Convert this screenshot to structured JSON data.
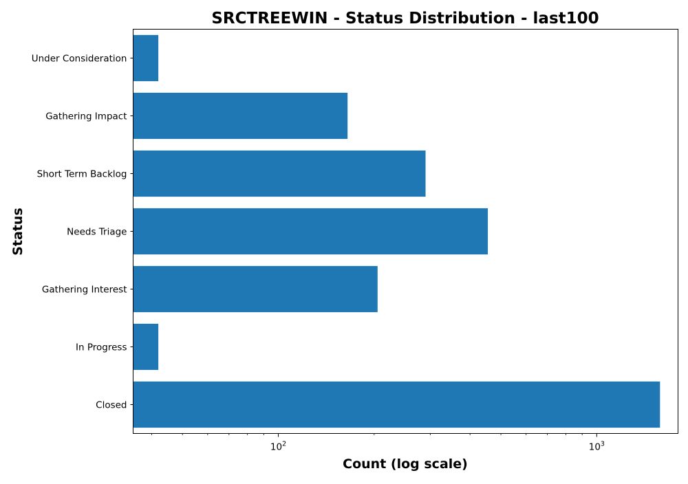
{
  "chart_data": {
    "type": "bar",
    "orientation": "horizontal",
    "title": "SRCTREEWIN - Status Distribution - last100",
    "xlabel": "Count (log scale)",
    "ylabel": "Status",
    "x_scale": "log",
    "xlim": [
      35,
      1800
    ],
    "x_ticks": [
      {
        "value": 100,
        "base": "10",
        "exponent": "2"
      },
      {
        "value": 1000,
        "base": "10",
        "exponent": "3"
      }
    ],
    "categories": [
      "Under Consideration",
      "Gathering Impact",
      "Short Term Backlog",
      "Needs Triage",
      "Gathering Interest",
      "In Progress",
      "Closed"
    ],
    "values": [
      42,
      165,
      290,
      455,
      205,
      42,
      1580
    ],
    "bar_color": "#1f77b4",
    "grid": false,
    "legend": "none"
  }
}
